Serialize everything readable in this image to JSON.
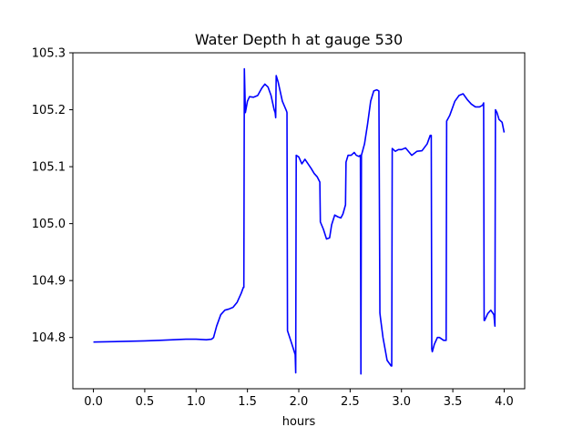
{
  "chart_data": {
    "type": "line",
    "title": "Water Depth h at gauge 530",
    "xlabel": "hours",
    "ylabel": "",
    "xlim": [
      -0.2,
      4.2
    ],
    "ylim": [
      104.71,
      105.3
    ],
    "xticks": [
      "0.0",
      "0.5",
      "1.0",
      "1.5",
      "2.0",
      "2.5",
      "3.0",
      "3.5",
      "4.0"
    ],
    "xtick_values": [
      0,
      0.5,
      1.0,
      1.5,
      2.0,
      2.5,
      3.0,
      3.5,
      4.0
    ],
    "yticks": [
      "104.8",
      "104.9",
      "105.0",
      "105.1",
      "105.2",
      "105.3"
    ],
    "ytick_values": [
      104.8,
      104.9,
      105.0,
      105.1,
      105.2,
      105.3
    ],
    "grid": false,
    "series": [
      {
        "color": "#0000ff",
        "x": [
          0.0,
          0.5,
          0.65,
          0.9,
          1.0,
          1.1,
          1.15,
          1.17,
          1.2,
          1.24,
          1.28,
          1.32,
          1.36,
          1.4,
          1.44,
          1.46,
          1.465,
          1.47,
          1.48,
          1.5,
          1.52,
          1.56,
          1.6,
          1.64,
          1.67,
          1.7,
          1.73,
          1.76,
          1.77,
          1.775,
          1.78,
          1.8,
          1.84,
          1.88,
          1.885,
          1.89,
          1.93,
          1.965,
          1.97,
          1.975,
          2.0,
          2.03,
          2.06,
          2.09,
          2.12,
          2.15,
          2.18,
          2.205,
          2.21,
          2.24,
          2.27,
          2.3,
          2.32,
          2.35,
          2.38,
          2.41,
          2.43,
          2.455,
          2.46,
          2.48,
          2.51,
          2.54,
          2.56,
          2.585,
          2.6,
          2.605,
          2.61,
          2.64,
          2.67,
          2.7,
          2.73,
          2.76,
          2.78,
          2.79,
          2.795,
          2.82,
          2.86,
          2.9,
          2.905,
          2.91,
          2.94,
          2.97,
          3.0,
          3.04,
          3.1,
          3.15,
          3.2,
          3.25,
          3.28,
          3.29,
          3.295,
          3.3,
          3.32,
          3.35,
          3.37,
          3.41,
          3.435,
          3.44,
          3.47,
          3.52,
          3.56,
          3.6,
          3.64,
          3.68,
          3.72,
          3.76,
          3.79,
          3.8,
          3.805,
          3.81,
          3.84,
          3.87,
          3.9,
          3.91,
          3.915,
          3.93,
          3.95,
          3.98,
          4.0
        ],
        "y": [
          104.792,
          104.794,
          104.795,
          104.797,
          104.797,
          104.796,
          104.797,
          104.8,
          104.82,
          104.84,
          104.848,
          104.85,
          104.853,
          104.862,
          104.878,
          104.888,
          104.888,
          105.272,
          105.195,
          105.215,
          105.223,
          105.222,
          105.225,
          105.238,
          105.245,
          105.24,
          105.225,
          105.2,
          105.195,
          105.186,
          105.26,
          105.248,
          105.215,
          105.198,
          105.195,
          104.812,
          104.79,
          104.77,
          104.738,
          105.12,
          105.117,
          105.105,
          105.113,
          105.105,
          105.097,
          105.088,
          105.082,
          105.073,
          105.003,
          104.99,
          104.973,
          104.975,
          104.998,
          105.015,
          105.012,
          105.01,
          105.017,
          105.033,
          105.108,
          105.12,
          105.12,
          105.125,
          105.12,
          105.118,
          105.12,
          104.736,
          105.12,
          105.14,
          105.175,
          105.215,
          105.233,
          105.235,
          105.233,
          104.843,
          104.835,
          104.8,
          104.76,
          104.75,
          104.75,
          105.132,
          105.127,
          105.13,
          105.13,
          105.133,
          105.12,
          105.127,
          105.128,
          105.14,
          105.155,
          105.155,
          104.78,
          104.775,
          104.788,
          104.8,
          104.8,
          104.795,
          104.795,
          105.18,
          105.19,
          105.215,
          105.225,
          105.228,
          105.218,
          105.21,
          105.205,
          105.205,
          105.208,
          105.212,
          104.83,
          104.83,
          104.842,
          104.848,
          104.84,
          104.82,
          105.2,
          105.195,
          105.183,
          105.178,
          105.16
        ]
      }
    ]
  }
}
